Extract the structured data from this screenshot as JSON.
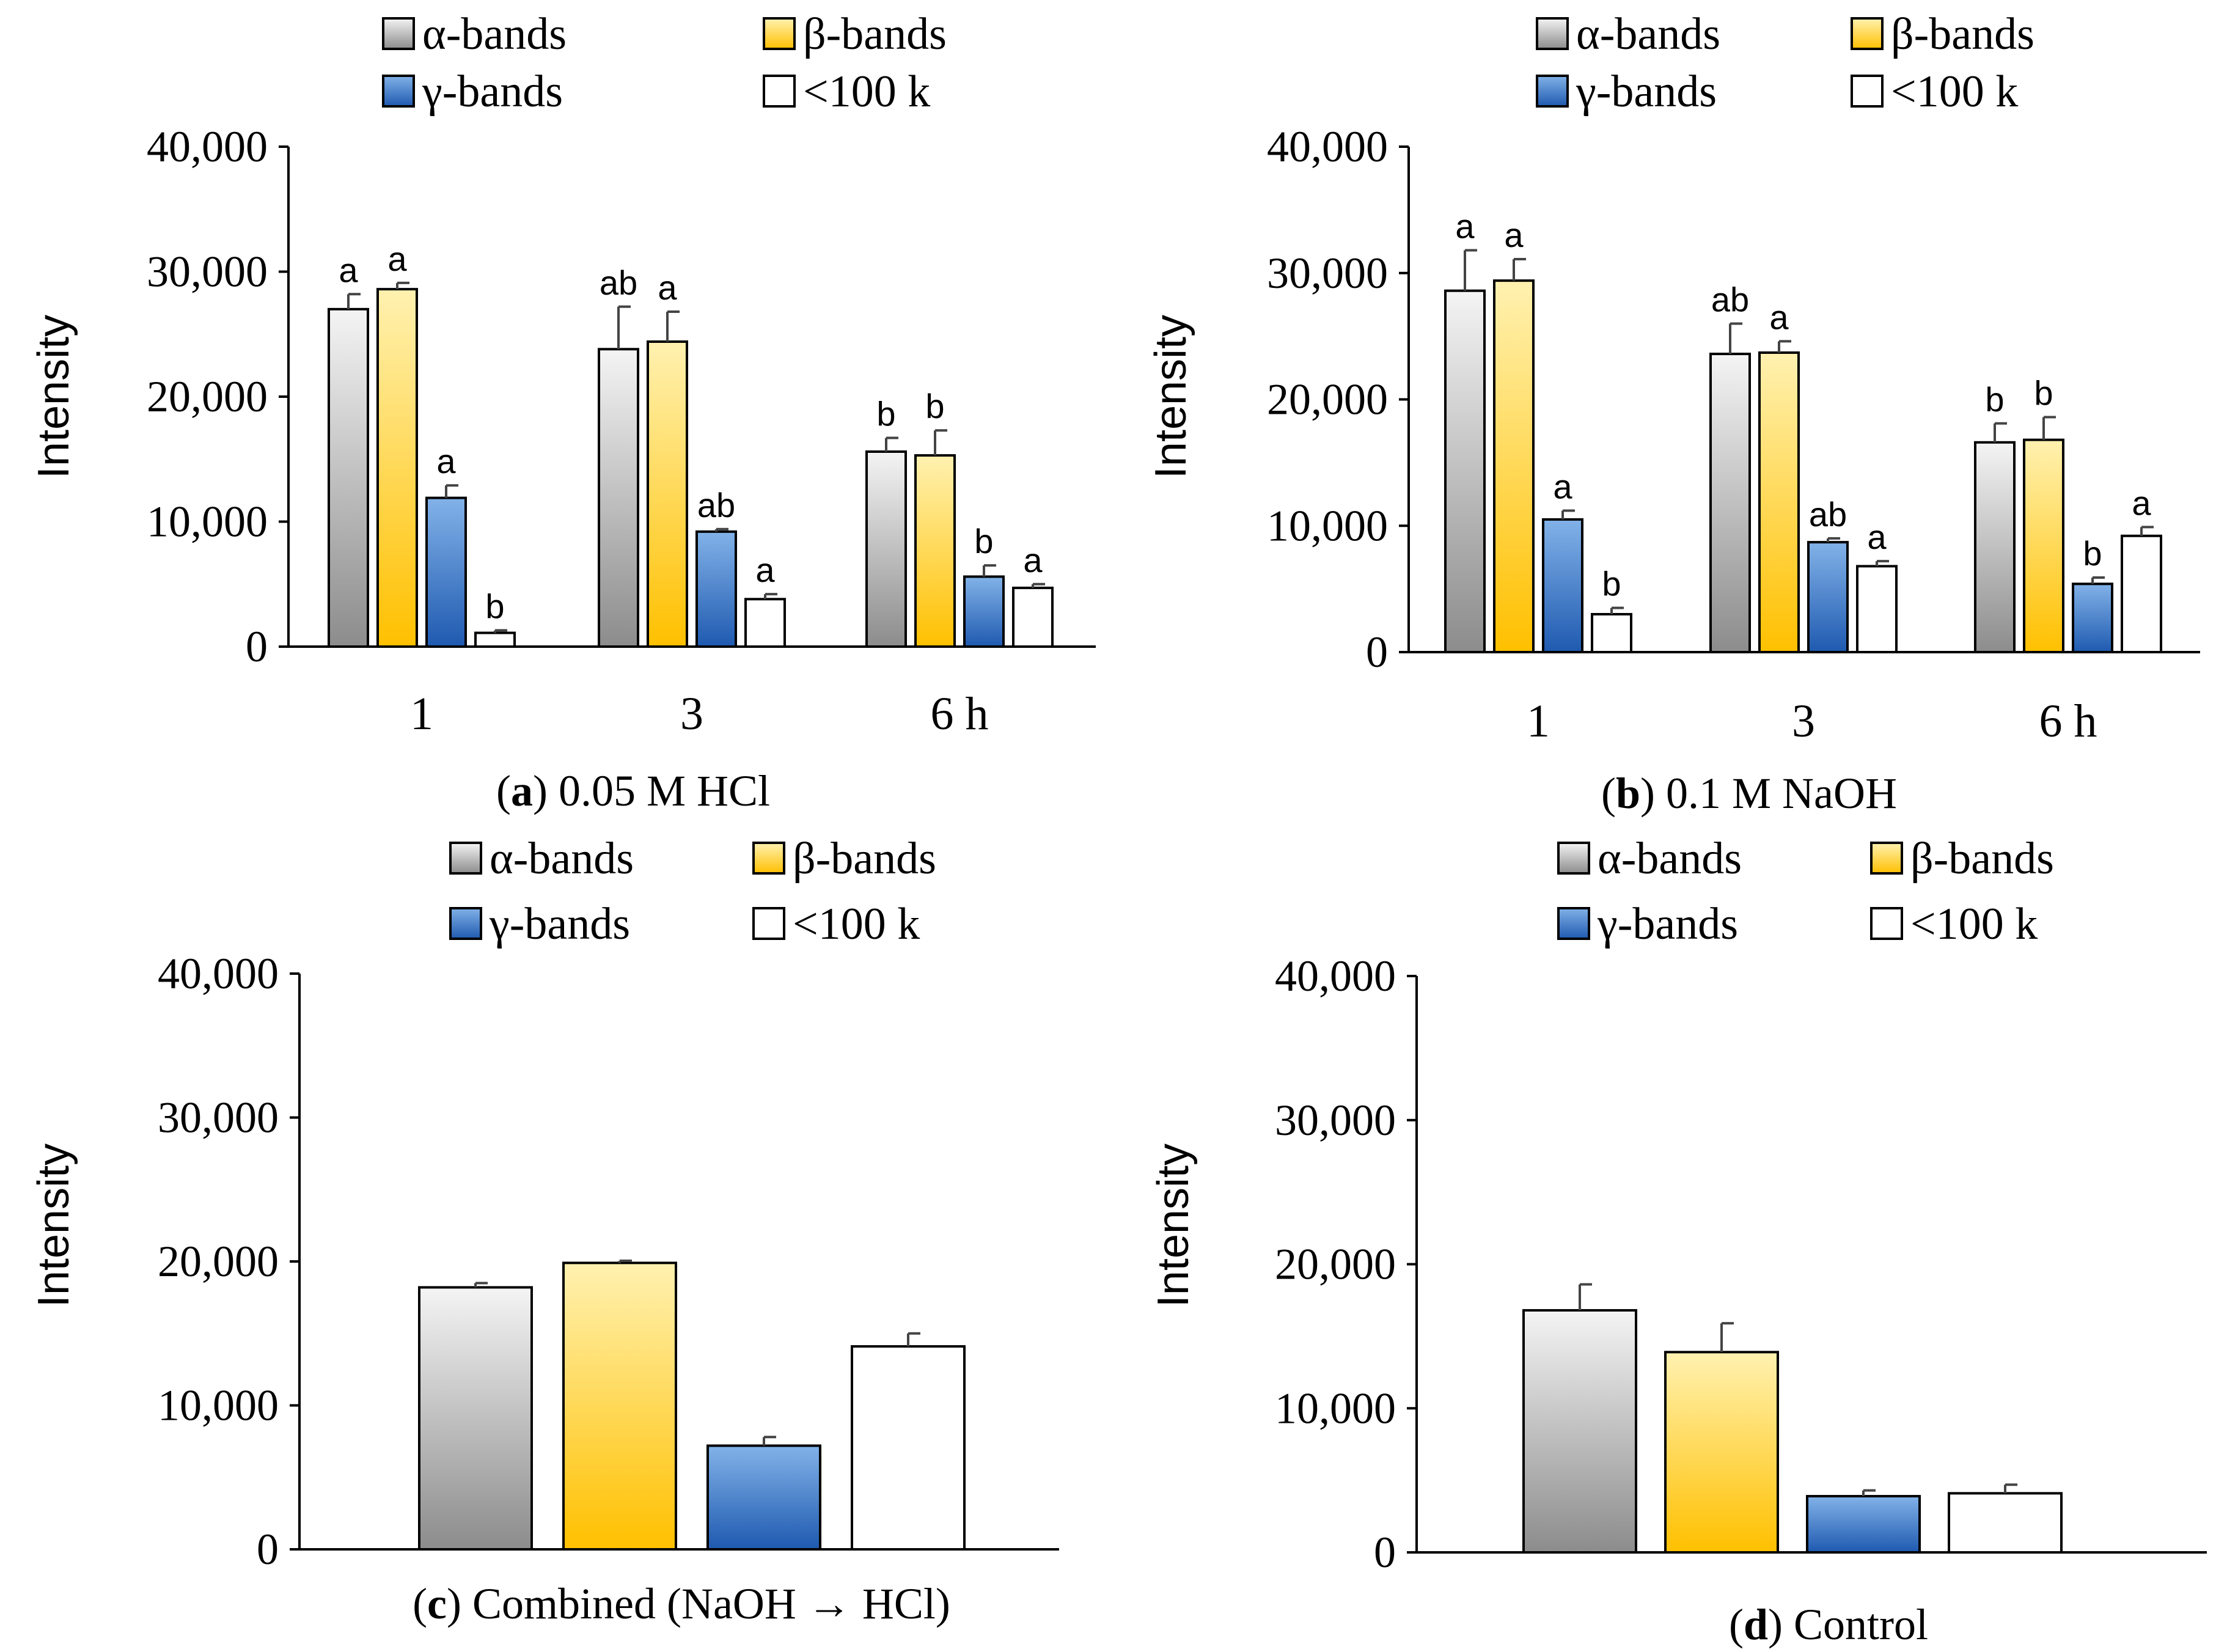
{
  "figure": {
    "panels": [
      {
        "letter": "a",
        "caption": " 0.05 M HCl"
      },
      {
        "letter": "b",
        "caption": " 0.1 M NaOH"
      },
      {
        "letter": "c",
        "caption": " Combined (NaOH → HCl)"
      },
      {
        "letter": "d",
        "caption": " Control"
      }
    ],
    "colors": {
      "alpha_gradient": [
        "#f4f4f4",
        "#8c8c8c"
      ],
      "beta_gradient": [
        "#fff1b0",
        "#ffc000"
      ],
      "gamma_gradient": [
        "#82b2e8",
        "#1f5ab0"
      ],
      "lt100k": "#ffffff",
      "outline": "#000000"
    }
  },
  "chart_data": [
    {
      "type": "bar",
      "title": "0.05 M HCl",
      "xlabel": "",
      "ylabel": "Intensity",
      "ylim": [
        0,
        40000
      ],
      "yticks": [
        "0",
        "10,000",
        "20,000",
        "30,000",
        "40,000"
      ],
      "categories": [
        "1",
        "3",
        "6 h"
      ],
      "legend": [
        "α-bands",
        "β-bands",
        "γ-bands",
        "<100 k"
      ],
      "series": [
        {
          "name": "α-bands",
          "values": [
            27000,
            23800,
            15600
          ],
          "errors": [
            1200,
            3400,
            1100
          ],
          "letters": [
            "a",
            "ab",
            "b"
          ]
        },
        {
          "name": "β-bands",
          "values": [
            28600,
            24400,
            15300
          ],
          "errors": [
            500,
            2400,
            2000
          ],
          "letters": [
            "a",
            "a",
            "b"
          ]
        },
        {
          "name": "γ-bands",
          "values": [
            11900,
            9200,
            5600
          ],
          "errors": [
            1000,
            200,
            900
          ],
          "letters": [
            "a",
            "ab",
            "b"
          ]
        },
        {
          "name": "<100 k",
          "values": [
            1100,
            3800,
            4700
          ],
          "errors": [
            200,
            400,
            300
          ],
          "letters": [
            "b",
            "a",
            "a"
          ]
        }
      ]
    },
    {
      "type": "bar",
      "title": "0.1 M NaOH",
      "xlabel": "",
      "ylabel": "Intensity",
      "ylim": [
        0,
        40000
      ],
      "yticks": [
        "0",
        "10,000",
        "20,000",
        "30,000",
        "40,000"
      ],
      "categories": [
        "1",
        "3",
        "6 h"
      ],
      "legend": [
        "α-bands",
        "β-bands",
        "γ-bands",
        "<100 k"
      ],
      "series": [
        {
          "name": "α-bands",
          "values": [
            28600,
            23600,
            16600
          ],
          "errors": [
            3200,
            2400,
            1500
          ],
          "letters": [
            "a",
            "ab",
            "b"
          ]
        },
        {
          "name": "β-bands",
          "values": [
            29400,
            23700,
            16800
          ],
          "errors": [
            1700,
            900,
            1800
          ],
          "letters": [
            "a",
            "a",
            "b"
          ]
        },
        {
          "name": "γ-bands",
          "values": [
            10500,
            8700,
            5400
          ],
          "errors": [
            700,
            300,
            500
          ],
          "letters": [
            "a",
            "ab",
            "b"
          ]
        },
        {
          "name": "<100 k",
          "values": [
            3000,
            6800,
            9200
          ],
          "errors": [
            500,
            400,
            700
          ],
          "letters": [
            "b",
            "a",
            "a"
          ]
        }
      ]
    },
    {
      "type": "bar",
      "title": "Combined (NaOH → HCl)",
      "xlabel": "",
      "ylabel": "Intensity",
      "ylim": [
        0,
        40000
      ],
      "yticks": [
        "0",
        "10,000",
        "20,000",
        "30,000",
        "40,000"
      ],
      "categories": [
        ""
      ],
      "legend": [
        "α-bands",
        "β-bands",
        "γ-bands",
        "<100 k"
      ],
      "series": [
        {
          "name": "α-bands",
          "values": [
            18200
          ],
          "errors": [
            300
          ],
          "letters": [
            ""
          ]
        },
        {
          "name": "β-bands",
          "values": [
            19900
          ],
          "errors": [
            150
          ],
          "letters": [
            ""
          ]
        },
        {
          "name": "γ-bands",
          "values": [
            7200
          ],
          "errors": [
            600
          ],
          "letters": [
            ""
          ]
        },
        {
          "name": "<100 k",
          "values": [
            14100
          ],
          "errors": [
            900
          ],
          "letters": [
            ""
          ]
        }
      ]
    },
    {
      "type": "bar",
      "title": "Control",
      "xlabel": "",
      "ylabel": "Intensity",
      "ylim": [
        0,
        40000
      ],
      "yticks": [
        "0",
        "10,000",
        "20,000",
        "30,000",
        "40,000"
      ],
      "categories": [
        ""
      ],
      "legend": [
        "α-bands",
        "β-bands",
        "γ-bands",
        "<100 k"
      ],
      "series": [
        {
          "name": "α-bands",
          "values": [
            16800
          ],
          "errors": [
            1800
          ],
          "letters": [
            ""
          ]
        },
        {
          "name": "β-bands",
          "values": [
            13900
          ],
          "errors": [
            2000
          ],
          "letters": [
            ""
          ]
        },
        {
          "name": "γ-bands",
          "values": [
            3900
          ],
          "errors": [
            400
          ],
          "letters": [
            ""
          ]
        },
        {
          "name": "<100 k",
          "values": [
            4100
          ],
          "errors": [
            600
          ],
          "letters": [
            ""
          ]
        }
      ]
    }
  ]
}
